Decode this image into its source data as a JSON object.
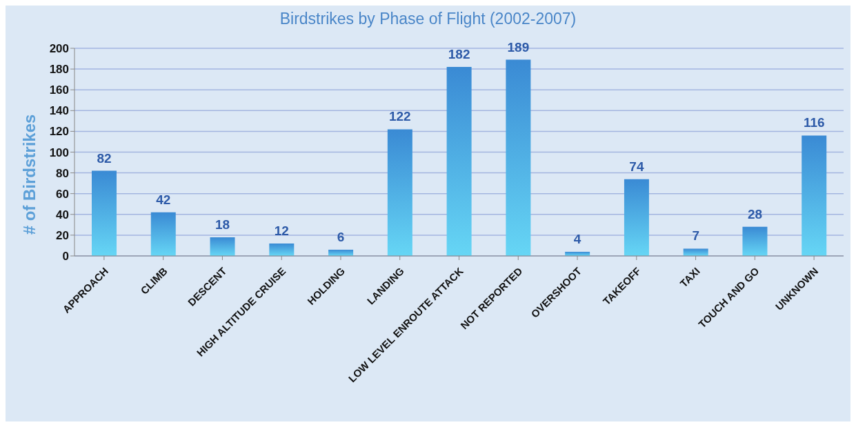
{
  "chart_data": {
    "type": "bar",
    "title": "Birdstrikes by Phase of Flight (2002-2007)",
    "ylabel": "# of Birdstrikes",
    "categories": [
      "APPROACH",
      "CLIMB",
      "DESCENT",
      "HIGH ALTITUDE CRUISE",
      "HOLDING",
      "LANDING",
      "LOW LEVEL ENROUTE ATTACK",
      "NOT REPORTED",
      "OVERSHOOT",
      "TAKEOFF",
      "TAXI",
      "TOUCH AND GO",
      "UNKNOWN"
    ],
    "values": [
      82,
      42,
      18,
      12,
      6,
      122,
      182,
      189,
      4,
      74,
      7,
      28,
      116
    ],
    "color": "#3a8ad4",
    "ylim": [
      0,
      200
    ],
    "yticks": [
      0,
      20,
      40,
      60,
      80,
      100,
      120,
      140,
      160,
      180,
      200
    ],
    "grid": "y",
    "data_labels": true,
    "legend": false
  }
}
